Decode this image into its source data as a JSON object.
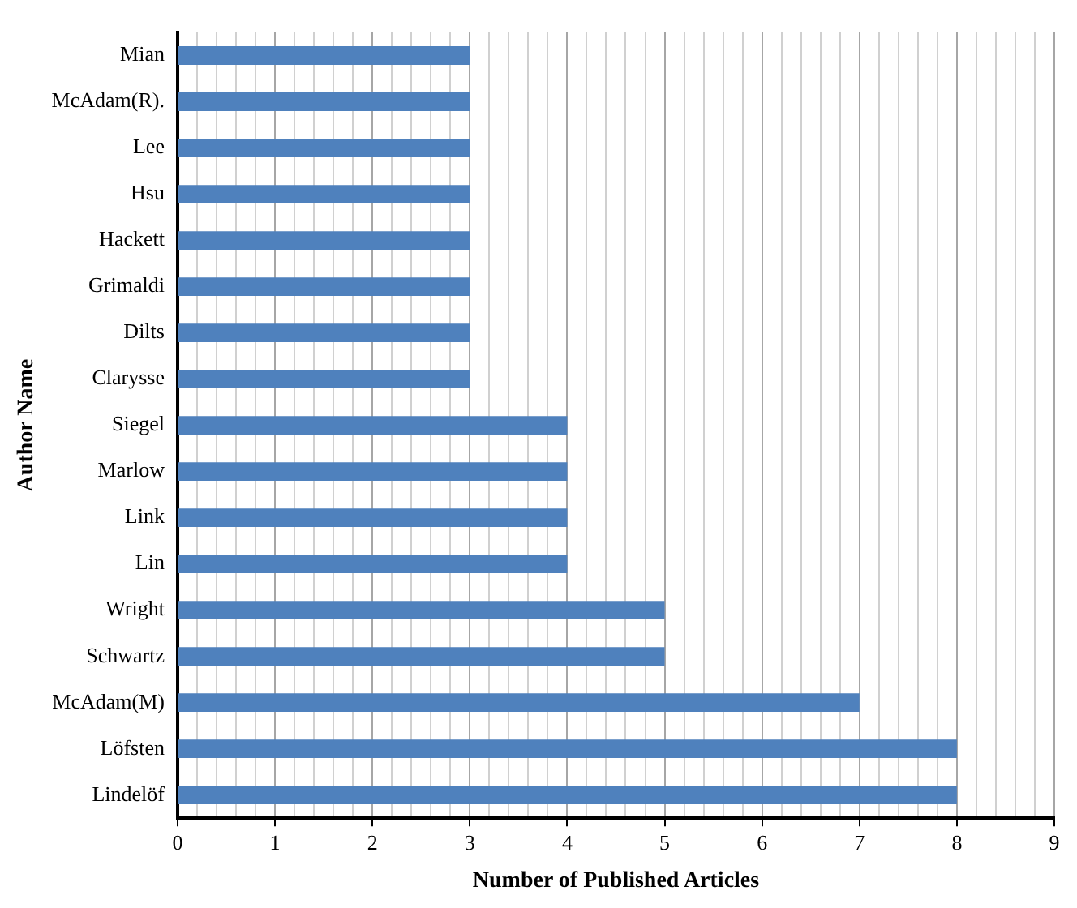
{
  "chart_data": {
    "type": "bar",
    "orientation": "horizontal",
    "xlabel": "Number of Published Articles",
    "ylabel": "Author Name",
    "categories": [
      "Mian",
      "McAdam(R).",
      "Lee",
      "Hsu",
      "Hackett",
      "Grimaldi",
      "Dilts",
      "Clarysse",
      "Siegel",
      "Marlow",
      "Link",
      "Lin",
      "Wright",
      "Schwartz",
      "McAdam(M)",
      "Löfsten",
      "Lindelöf"
    ],
    "values": [
      3,
      3,
      3,
      3,
      3,
      3,
      3,
      3,
      4,
      4,
      4,
      4,
      5,
      5,
      7,
      8,
      8
    ],
    "color": "#4f81bd",
    "xlim": [
      0,
      9
    ],
    "xticks": [
      0,
      {
        "value": 0.2,
        "label": null
      },
      {
        "value": 0.4,
        "label": null
      },
      {
        "value": 0.6,
        "label": null
      },
      {
        "value": 0.8,
        "label": null
      },
      1,
      {
        "value": 1.2,
        "label": null
      },
      {
        "value": 1.4,
        "label": null
      },
      {
        "value": 1.6,
        "label": null
      },
      {
        "value": 1.8,
        "label": null
      },
      2,
      {
        "value": 2.2,
        "label": null
      },
      {
        "value": 2.4,
        "label": null
      },
      {
        "value": 2.6,
        "label": null
      },
      {
        "value": 2.8,
        "label": null
      },
      3,
      {
        "value": 3.2,
        "label": null
      },
      {
        "value": 3.4,
        "label": null
      },
      {
        "value": 3.6,
        "label": null
      },
      {
        "value": 3.8,
        "label": null
      },
      4,
      {
        "value": 4.2,
        "label": null
      },
      {
        "value": 4.4,
        "label": null
      },
      {
        "value": 4.6,
        "label": null
      },
      {
        "value": 4.8,
        "label": null
      },
      5,
      {
        "value": 5.2,
        "label": null
      },
      {
        "value": 5.4,
        "label": null
      },
      {
        "value": 5.6,
        "label": null
      },
      {
        "value": 5.8,
        "label": null
      },
      6,
      {
        "value": 6.2,
        "label": null
      },
      {
        "value": 6.4,
        "label": null
      },
      {
        "value": 6.6,
        "label": null
      },
      {
        "value": 6.8,
        "label": null
      },
      7,
      {
        "value": 7.2,
        "label": null
      },
      {
        "value": 7.4,
        "label": null
      },
      {
        "value": 7.6,
        "label": null
      },
      {
        "value": 7.8,
        "label": null
      },
      8,
      {
        "value": 8.2,
        "label": null
      },
      {
        "value": 8.4,
        "label": null
      },
      {
        "value": 8.6,
        "label": null
      },
      {
        "value": 8.8,
        "label": null
      },
      9
    ],
    "grid": "x",
    "legend": false
  }
}
